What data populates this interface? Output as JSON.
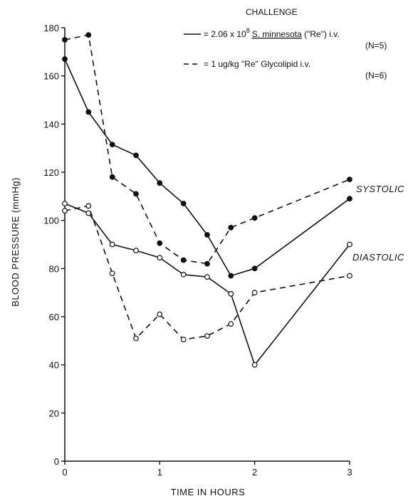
{
  "chart_data": {
    "type": "line",
    "xlabel": "TIME IN HOURS",
    "ylabel": "BLOOD PRESSURE (mmHg)",
    "xlim": [
      0,
      3
    ],
    "ylim": [
      0,
      180
    ],
    "x_ticks": [
      0,
      1,
      2,
      3
    ],
    "y_ticks": [
      0,
      20,
      40,
      60,
      80,
      100,
      120,
      140,
      160,
      180
    ],
    "grid": false,
    "legend": {
      "heading": "CHALLENGE",
      "placement": "top-right",
      "entries": [
        {
          "line": "solid",
          "text_pre": "= 2.06 x 10",
          "superscript": "8",
          "organism": "S. minnesota",
          "text_post": " (\"Re\") i.v.",
          "n": "(N=5)"
        },
        {
          "line": "dashed",
          "text_pre": "= 1 ug/kg \"Re\" Glycolipid i.v.",
          "n": "(N=6)"
        }
      ]
    },
    "annotations": [
      {
        "text": "SYSTOLIC",
        "x": 3,
        "y": 120
      },
      {
        "text": "DIASTOLIC",
        "x": 3,
        "y": 84
      }
    ],
    "series": [
      {
        "line": "solid",
        "marker": "filled",
        "measure": "systolic",
        "points": [
          [
            0,
            167
          ],
          [
            0.25,
            145
          ],
          [
            0.5,
            131.5
          ],
          [
            0.75,
            127
          ],
          [
            1,
            115.5
          ],
          [
            1.25,
            107
          ],
          [
            1.5,
            94
          ],
          [
            1.75,
            77
          ],
          [
            2,
            80
          ],
          [
            3,
            109
          ]
        ]
      },
      {
        "line": "dashed",
        "marker": "filled",
        "measure": "systolic",
        "points": [
          [
            0,
            175
          ],
          [
            0.25,
            177
          ],
          [
            0.5,
            118
          ],
          [
            0.75,
            111
          ],
          [
            1,
            90.5
          ],
          [
            1.25,
            83.5
          ],
          [
            1.5,
            82
          ],
          [
            1.75,
            97
          ],
          [
            2,
            101
          ],
          [
            3,
            117
          ]
        ]
      },
      {
        "line": "solid",
        "marker": "open",
        "measure": "diastolic",
        "points": [
          [
            0,
            107
          ],
          [
            0.25,
            103
          ],
          [
            0.5,
            90
          ],
          [
            0.75,
            87.5
          ],
          [
            1,
            84.5
          ],
          [
            1.25,
            77.5
          ],
          [
            1.5,
            76.5
          ],
          [
            1.75,
            69.5
          ],
          [
            2,
            40
          ],
          [
            3,
            90
          ]
        ]
      },
      {
        "line": "dashed",
        "marker": "open",
        "measure": "diastolic",
        "points": [
          [
            0,
            104
          ],
          [
            0.25,
            106
          ],
          [
            0.5,
            78
          ],
          [
            0.75,
            51
          ],
          [
            1,
            61
          ],
          [
            1.25,
            50.5
          ],
          [
            1.5,
            52
          ],
          [
            1.75,
            57
          ],
          [
            2,
            70
          ],
          [
            3,
            77
          ]
        ]
      }
    ]
  }
}
